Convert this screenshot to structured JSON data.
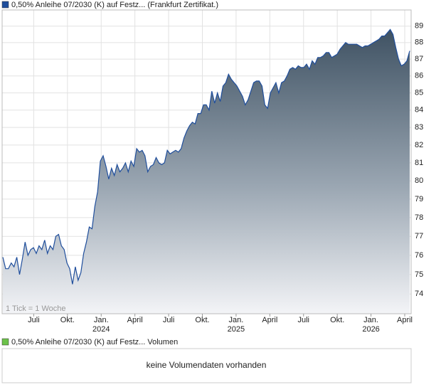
{
  "chart_data": {
    "type": "area",
    "series": [
      {
        "name": "0,50% Anleihe 07/2030 (K) auf Festz... (Frankfurt Zertifikat.)",
        "color": "#1f4e9c",
        "values": [
          75.9,
          75.3,
          75.3,
          75.6,
          75.4,
          75.9,
          75.0,
          75.8,
          76.7,
          76.0,
          76.3,
          76.4,
          76.1,
          76.5,
          76.3,
          76.8,
          76.1,
          76.5,
          76.3,
          77.0,
          77.1,
          76.5,
          76.3,
          75.6,
          75.3,
          74.5,
          75.4,
          74.7,
          75.1,
          76.1,
          76.7,
          77.5,
          77.4,
          78.6,
          79.4,
          81.1,
          81.4,
          80.8,
          80.1,
          80.7,
          80.3,
          80.9,
          80.5,
          80.7,
          81.0,
          80.5,
          81.1,
          80.8,
          81.8,
          81.6,
          81.7,
          81.4,
          80.5,
          80.8,
          80.9,
          81.3,
          81.0,
          80.9,
          81.0,
          81.7,
          81.5,
          81.6,
          81.7,
          81.6,
          81.8,
          82.4,
          82.8,
          83.1,
          83.3,
          83.2,
          83.8,
          83.8,
          84.3,
          84.3,
          84.0,
          85.1,
          84.4,
          85.0,
          84.5,
          85.4,
          85.6,
          86.1,
          85.8,
          85.6,
          85.4,
          85.1,
          84.8,
          84.3,
          84.6,
          85.1,
          85.6,
          85.7,
          85.7,
          85.4,
          84.3,
          84.1,
          85.0,
          85.3,
          85.6,
          85.0,
          85.6,
          85.7,
          86.0,
          86.4,
          86.5,
          86.4,
          86.6,
          86.5,
          86.5,
          86.7,
          86.4,
          86.9,
          86.7,
          87.1,
          87.1,
          87.2,
          87.4,
          87.4,
          87.1,
          87.2,
          87.3,
          87.6,
          87.8,
          88.0,
          87.9,
          87.9,
          87.9,
          87.9,
          87.8,
          87.7,
          87.8,
          87.8,
          87.9,
          88.0,
          88.1,
          88.2,
          88.4,
          88.4,
          88.6,
          88.8,
          88.5,
          87.7,
          87.0,
          86.6,
          86.7,
          86.9,
          87.5
        ]
      }
    ],
    "ylim": [
      73,
      90
    ],
    "yticks": [
      74,
      75,
      76,
      77,
      78,
      79,
      80,
      81,
      82,
      83,
      84,
      85,
      86,
      87,
      88,
      89
    ],
    "log_scale": true,
    "grid": true,
    "xlim": [
      "2023-04",
      "2026-04"
    ],
    "xticks": [
      {
        "value": "2023-07",
        "label": "Juli"
      },
      {
        "value": "2023-10",
        "label": "Okt."
      },
      {
        "value": "2024-01",
        "label": "Jan.",
        "year": "2024"
      },
      {
        "value": "2024-04",
        "label": "April"
      },
      {
        "value": "2024-07",
        "label": "Juli"
      },
      {
        "value": "2024-10",
        "label": "Okt."
      },
      {
        "value": "2025-01",
        "label": "Jan.",
        "year": "2025"
      },
      {
        "value": "2025-04",
        "label": "April"
      },
      {
        "value": "2025-07",
        "label": "Juli"
      },
      {
        "value": "2025-10",
        "label": "Okt."
      },
      {
        "value": "2026-01",
        "label": "Jan.",
        "year": "2026"
      },
      {
        "value": "2026-04",
        "label": "April"
      }
    ],
    "note": "1 Tick = 1 Woche"
  },
  "volume_panel": {
    "legend": "0,50% Anleihe 07/2030 (K) auf Festz... Volumen",
    "legend_color": "#6cc24a",
    "message": "keine Volumendaten vorhanden"
  }
}
